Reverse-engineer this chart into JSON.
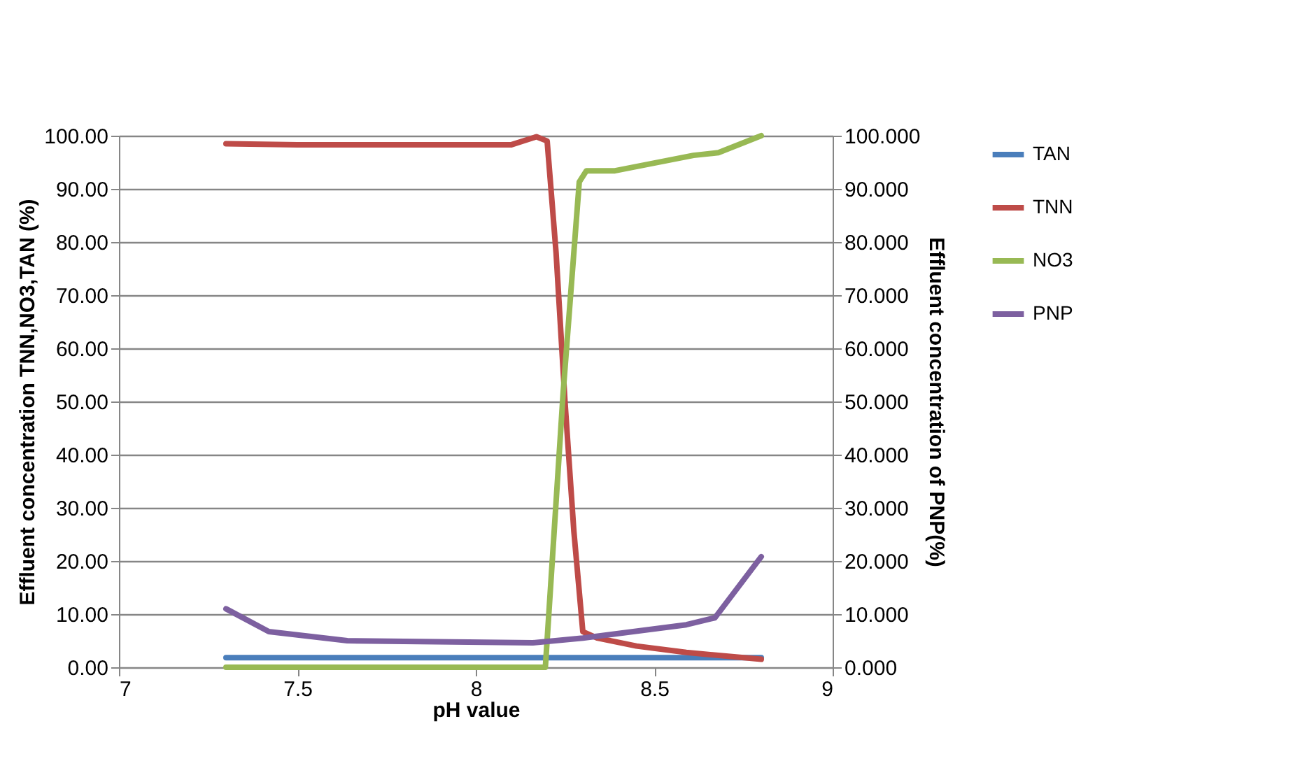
{
  "chart_data": {
    "type": "line",
    "xlabel": "pH value",
    "ylabel": "Effluent concentration TNN,NO3,TAN (%)",
    "y2label": "Effluent concentration of PNP(%)",
    "xlim": [
      7,
      9
    ],
    "xticks": [
      7,
      7.5,
      8,
      8.5,
      9
    ],
    "ylim": [
      0,
      100
    ],
    "yticks": [
      {
        "value": 0,
        "label": "0.00"
      },
      {
        "value": 10,
        "label": "10.00"
      },
      {
        "value": 20,
        "label": "20.00"
      },
      {
        "value": 30,
        "label": "30.00"
      },
      {
        "value": 40,
        "label": "40.00"
      },
      {
        "value": 50,
        "label": "50.00"
      },
      {
        "value": 60,
        "label": "60.00"
      },
      {
        "value": 70,
        "label": "70.00"
      },
      {
        "value": 80,
        "label": "80.00"
      },
      {
        "value": 90,
        "label": "90.00"
      },
      {
        "value": 100,
        "label": "100.00"
      }
    ],
    "y2lim": [
      0,
      100
    ],
    "y2ticks": [
      {
        "value": 0,
        "label": "0.000"
      },
      {
        "value": 10,
        "label": "10.000"
      },
      {
        "value": 20,
        "label": "20.000"
      },
      {
        "value": 30,
        "label": "30.000"
      },
      {
        "value": 40,
        "label": "40.000"
      },
      {
        "value": 50,
        "label": "50.000"
      },
      {
        "value": 60,
        "label": "60.000"
      },
      {
        "value": 70,
        "label": "70.000"
      },
      {
        "value": 80,
        "label": "80.000"
      },
      {
        "value": 90,
        "label": "90.000"
      },
      {
        "value": 100,
        "label": "100.000"
      }
    ],
    "grid": "y",
    "legend": "right",
    "marker": "none",
    "line_style": "solid",
    "series": [
      {
        "name": "TAN",
        "color": "#4a7ebb",
        "x": [
          7.3,
          8.0,
          8.8
        ],
        "values": [
          1.8,
          1.8,
          1.8
        ]
      },
      {
        "name": "TNN",
        "color": "#be4b48",
        "x": [
          7.3,
          7.5,
          8.1,
          8.17,
          8.2,
          8.225,
          8.25,
          8.275,
          8.3,
          8.34,
          8.45,
          8.59,
          8.8
        ],
        "values": [
          98.5,
          98.3,
          98.3,
          99.8,
          99,
          78,
          50,
          25.5,
          6.7,
          5.5,
          4,
          2.8,
          1.5
        ]
      },
      {
        "name": "NO3",
        "color": "#98b954",
        "x": [
          7.3,
          8.1,
          8.195,
          8.245,
          8.29,
          8.31,
          8.39,
          8.61,
          8.68,
          8.8
        ],
        "values": [
          0,
          0,
          0,
          51.8,
          91.3,
          93.4,
          93.4,
          96.3,
          96.8,
          100
        ]
      },
      {
        "name": "PNP",
        "color": "#7d60a0",
        "axis": "y2",
        "x": [
          7.3,
          7.42,
          7.64,
          8.16,
          8.3,
          8.59,
          8.67,
          8.8
        ],
        "values": [
          11,
          6.7,
          5,
          4.6,
          5.5,
          8,
          9.3,
          20.8
        ]
      }
    ]
  }
}
